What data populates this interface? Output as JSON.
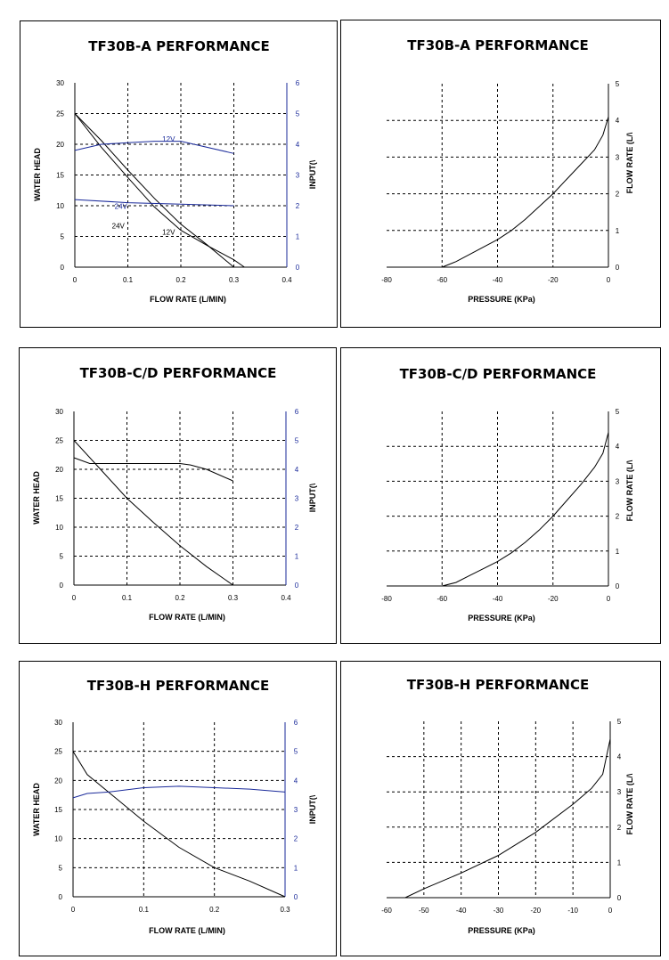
{
  "chart_data": [
    {
      "type": "line",
      "title": "TF30B-A PERFORMANCE",
      "xlabel": "FLOW RATE (L/MIN)",
      "ylabel": "WATER HEAD",
      "y2label": "INPUT(\\",
      "xlim": [
        0,
        0.4
      ],
      "ylim": [
        0,
        30
      ],
      "y2lim": [
        0,
        6
      ],
      "xticks": [
        0,
        0.1,
        0.2,
        0.3,
        0.4
      ],
      "xtick_labels": [
        "0",
        "0.1",
        "0.2",
        "0.3",
        "0.4"
      ],
      "yticks": [
        0,
        5,
        10,
        15,
        20,
        25,
        30
      ],
      "ytick_labels": [
        "0",
        "5",
        "10",
        "15",
        "20",
        "25",
        "30"
      ],
      "y2ticks": [
        0,
        1,
        2,
        3,
        4,
        5,
        6
      ],
      "y2tick_labels": [
        "0",
        "1",
        "2",
        "3",
        "4",
        "5",
        "6"
      ],
      "grid": true,
      "series": [
        {
          "name": "24V head",
          "axis": "left",
          "color": "#000000",
          "x": [
            0,
            0.05,
            0.1,
            0.15,
            0.2,
            0.25,
            0.3
          ],
          "y": [
            25,
            20.6,
            15.8,
            11.2,
            7,
            3.6,
            0
          ]
        },
        {
          "name": "12V head",
          "axis": "left",
          "color": "#000000",
          "x": [
            0,
            0.05,
            0.1,
            0.15,
            0.2,
            0.25,
            0.3,
            0.32
          ],
          "y": [
            25,
            19.5,
            14.6,
            9.8,
            6,
            3.5,
            1.2,
            0
          ]
        },
        {
          "name": "12V input",
          "axis": "right",
          "color": "#1a2a9a",
          "x": [
            0,
            0.05,
            0.1,
            0.15,
            0.2,
            0.3
          ],
          "y": [
            3.8,
            4,
            4.05,
            4.1,
            4.1,
            3.7
          ]
        },
        {
          "name": "24V input",
          "axis": "right",
          "color": "#1a2a9a",
          "x": [
            0,
            0.1,
            0.2,
            0.3
          ],
          "y": [
            2.2,
            2.1,
            2.05,
            2
          ]
        }
      ],
      "annotations": [
        {
          "text": "12V",
          "x": 0.165,
          "y": 20.4,
          "color": "blue"
        },
        {
          "text": "24V",
          "x": 0.075,
          "y": 9.5,
          "color": "blue"
        },
        {
          "text": "24V",
          "x": 0.07,
          "y": 6.3,
          "color": "black"
        },
        {
          "text": "12V",
          "x": 0.165,
          "y": 5.3,
          "color": "black"
        }
      ]
    },
    {
      "type": "line",
      "title": "TF30B-A PERFORMANCE",
      "xlabel": "PRESSURE (KPa)",
      "ylabel": "FLOW RATE (L/\\",
      "xlim": [
        -80,
        0
      ],
      "ylim": [
        0,
        5
      ],
      "xticks": [
        -80,
        -60,
        -40,
        -20,
        0
      ],
      "xtick_labels": [
        "-80",
        "-60",
        "-40",
        "-20",
        "0"
      ],
      "yticks": [
        0,
        1,
        2,
        3,
        4,
        5
      ],
      "ytick_labels": [
        "0",
        "1",
        "2",
        "3",
        "4",
        "5"
      ],
      "grid": true,
      "series": [
        {
          "name": "flow",
          "color": "#000000",
          "x": [
            -60,
            -55,
            -50,
            -45,
            -40,
            -35,
            -30,
            -25,
            -20,
            -15,
            -10,
            -5,
            -2,
            0
          ],
          "y": [
            0,
            0.15,
            0.35,
            0.55,
            0.75,
            1,
            1.3,
            1.65,
            2,
            2.4,
            2.8,
            3.2,
            3.6,
            4.1
          ]
        }
      ]
    },
    {
      "type": "line",
      "title": "TF30B-C/D PERFORMANCE",
      "xlabel": "FLOW RATE (L/MIN)",
      "ylabel": "WATER HEAD",
      "y2label": "INPUT(\\",
      "xlim": [
        0,
        0.4
      ],
      "ylim": [
        0,
        30
      ],
      "y2lim": [
        0,
        6
      ],
      "xticks": [
        0,
        0.1,
        0.2,
        0.3,
        0.4
      ],
      "xtick_labels": [
        "0",
        "0.1",
        "0.2",
        "0.3",
        "0.4"
      ],
      "yticks": [
        0,
        5,
        10,
        15,
        20,
        25,
        30
      ],
      "ytick_labels": [
        "0",
        "5",
        "10",
        "15",
        "20",
        "25",
        "30"
      ],
      "y2ticks": [
        0,
        1,
        2,
        3,
        4,
        5,
        6
      ],
      "y2tick_labels": [
        "0",
        "1",
        "2",
        "3",
        "4",
        "5",
        "6"
      ],
      "grid": true,
      "series": [
        {
          "name": "head",
          "axis": "left",
          "color": "#000000",
          "x": [
            0,
            0.05,
            0.1,
            0.15,
            0.2,
            0.25,
            0.3
          ],
          "y": [
            25,
            20,
            15,
            10.8,
            6.8,
            3.2,
            0
          ]
        },
        {
          "name": "input",
          "axis": "right",
          "color": "#000000",
          "x": [
            0,
            0.03,
            0.1,
            0.2,
            0.22,
            0.25,
            0.3
          ],
          "y": [
            4.4,
            4.2,
            4.2,
            4.2,
            4.15,
            4,
            3.6
          ]
        }
      ]
    },
    {
      "type": "line",
      "title": "TF30B-C/D PERFORMANCE",
      "xlabel": "PRESSURE (KPa)",
      "ylabel": "FLOW RATE (L/\\",
      "xlim": [
        -80,
        0
      ],
      "ylim": [
        0,
        5
      ],
      "xticks": [
        -80,
        -60,
        -40,
        -20,
        0
      ],
      "xtick_labels": [
        "-80",
        "-60",
        "-40",
        "-20",
        "0"
      ],
      "yticks": [
        0,
        1,
        2,
        3,
        4,
        5
      ],
      "ytick_labels": [
        "0",
        "1",
        "2",
        "3",
        "4",
        "5"
      ],
      "grid": true,
      "series": [
        {
          "name": "flow",
          "color": "#000000",
          "x": [
            -60,
            -55,
            -50,
            -45,
            -40,
            -35,
            -30,
            -25,
            -20,
            -15,
            -10,
            -5,
            -2,
            0
          ],
          "y": [
            0,
            0.1,
            0.3,
            0.5,
            0.7,
            0.95,
            1.25,
            1.6,
            2,
            2.45,
            2.9,
            3.4,
            3.8,
            4.4
          ]
        }
      ]
    },
    {
      "type": "line",
      "title": "TF30B-H PERFORMANCE",
      "xlabel": "FLOW RATE (L/MIN)",
      "ylabel": "WATER HEAD",
      "y2label": "INPUT(\\",
      "xlim": [
        0,
        0.3
      ],
      "ylim": [
        0,
        30
      ],
      "y2lim": [
        0,
        6
      ],
      "xticks": [
        0,
        0.1,
        0.2,
        0.3
      ],
      "xtick_labels": [
        "0",
        "0.1",
        "0.2",
        "0.3"
      ],
      "yticks": [
        0,
        5,
        10,
        15,
        20,
        25,
        30
      ],
      "ytick_labels": [
        "0",
        "5",
        "10",
        "15",
        "20",
        "25",
        "30"
      ],
      "y2ticks": [
        0,
        1,
        2,
        3,
        4,
        5,
        6
      ],
      "y2tick_labels": [
        "0",
        "1",
        "2",
        "3",
        "4",
        "5",
        "6"
      ],
      "grid": true,
      "series": [
        {
          "name": "head",
          "axis": "left",
          "color": "#000000",
          "x": [
            0,
            0.02,
            0.05,
            0.1,
            0.15,
            0.2,
            0.25,
            0.3
          ],
          "y": [
            25,
            21,
            18,
            13,
            8.5,
            5,
            2.7,
            0
          ]
        },
        {
          "name": "input",
          "axis": "right",
          "color": "#1a2a9a",
          "x": [
            0,
            0.02,
            0.05,
            0.1,
            0.15,
            0.2,
            0.25,
            0.3
          ],
          "y": [
            3.4,
            3.55,
            3.6,
            3.75,
            3.8,
            3.75,
            3.7,
            3.6
          ]
        }
      ]
    },
    {
      "type": "line",
      "title": "TF30B-H PERFORMANCE",
      "xlabel": "PRESSURE (KPa)",
      "ylabel": "FLOW RATE (L/\\",
      "xlim": [
        -60,
        0
      ],
      "ylim": [
        0,
        5
      ],
      "xticks": [
        -60,
        -50,
        -40,
        -30,
        -20,
        -10,
        0
      ],
      "xtick_labels": [
        "-60",
        "-50",
        "-40",
        "-30",
        "-20",
        "-10",
        "0"
      ],
      "yticks": [
        0,
        1,
        2,
        3,
        4,
        5
      ],
      "ytick_labels": [
        "0",
        "1",
        "2",
        "3",
        "4",
        "5"
      ],
      "grid": true,
      "series": [
        {
          "name": "flow",
          "color": "#000000",
          "x": [
            -55,
            -50,
            -40,
            -30,
            -20,
            -10,
            -5,
            -2,
            0
          ],
          "y": [
            0,
            0.25,
            0.7,
            1.2,
            1.85,
            2.65,
            3.1,
            3.5,
            4.5
          ]
        }
      ]
    }
  ]
}
